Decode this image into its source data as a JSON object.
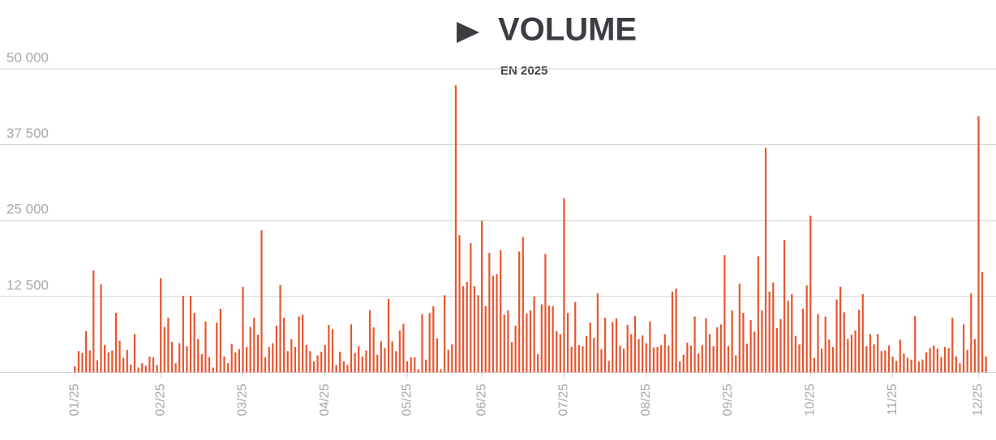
{
  "chart_data": {
    "type": "bar",
    "title": "VOLUME",
    "subtitle": "EN 2025",
    "color": "#e8552f",
    "grid": true,
    "ylim": [
      0,
      50000
    ],
    "yticks": [
      {
        "value": 12500,
        "label": "12 500"
      },
      {
        "value": 25000,
        "label": "25 000"
      },
      {
        "value": 37500,
        "label": "37 500"
      },
      {
        "value": 50000,
        "label": "50 000"
      }
    ],
    "categories": [
      "01/25",
      null,
      null,
      null,
      null,
      null,
      null,
      null,
      null,
      null,
      null,
      null,
      null,
      null,
      null,
      null,
      null,
      null,
      null,
      null,
      null,
      null,
      null,
      "02/25",
      null,
      null,
      null,
      null,
      null,
      null,
      null,
      null,
      null,
      null,
      null,
      null,
      null,
      null,
      null,
      null,
      null,
      null,
      null,
      null,
      null,
      "03/25",
      null,
      null,
      null,
      null,
      null,
      null,
      null,
      null,
      null,
      null,
      null,
      null,
      null,
      null,
      null,
      null,
      null,
      null,
      null,
      null,
      null,
      "04/25",
      null,
      null,
      null,
      null,
      null,
      null,
      null,
      null,
      null,
      null,
      null,
      null,
      null,
      null,
      null,
      null,
      null,
      null,
      null,
      null,
      null,
      "05/25",
      null,
      null,
      null,
      null,
      null,
      null,
      null,
      null,
      null,
      null,
      null,
      null,
      null,
      null,
      null,
      null,
      null,
      null,
      null,
      "06/25",
      null,
      null,
      null,
      null,
      null,
      null,
      null,
      null,
      null,
      null,
      null,
      null,
      null,
      null,
      null,
      null,
      null,
      null,
      null,
      null,
      null,
      "07/25",
      null,
      null,
      null,
      null,
      null,
      null,
      null,
      null,
      null,
      null,
      null,
      null,
      null,
      null,
      null,
      null,
      null,
      null,
      null,
      null,
      null,
      "08/25",
      null,
      null,
      null,
      null,
      null,
      null,
      null,
      null,
      null,
      null,
      null,
      null,
      null,
      null,
      null,
      null,
      null,
      null,
      null,
      null,
      null,
      "09/25",
      null,
      null,
      null,
      null,
      null,
      null,
      null,
      null,
      null,
      null,
      null,
      null,
      null,
      null,
      null,
      null,
      null,
      null,
      null,
      null,
      null,
      "10/25",
      null,
      null,
      null,
      null,
      null,
      null,
      null,
      null,
      null,
      null,
      null,
      null,
      null,
      null,
      null,
      null,
      null,
      null,
      null,
      null,
      null,
      "11/25",
      null,
      null,
      null,
      null,
      null,
      null,
      null,
      null,
      null,
      null,
      null,
      null,
      null,
      null,
      null,
      null,
      null,
      null,
      null,
      null,
      null,
      null,
      "12/25",
      null,
      null
    ],
    "values": [
      1000,
      3500,
      3200,
      6800,
      3600,
      16800,
      2000,
      14500,
      4500,
      3300,
      3600,
      9800,
      5200,
      2400,
      3700,
      1300,
      6300,
      800,
      1500,
      1100,
      2600,
      2500,
      1200,
      15500,
      7500,
      9000,
      5000,
      1500,
      4800,
      12600,
      4300,
      12600,
      9800,
      5500,
      3000,
      8400,
      2500,
      800,
      8200,
      10500,
      2600,
      1500,
      4700,
      3300,
      3800,
      14100,
      4200,
      7500,
      9000,
      6200,
      23400,
      2500,
      4200,
      4800,
      7700,
      14400,
      9000,
      3500,
      5500,
      4200,
      9200,
      9500,
      4500,
      3500,
      1800,
      2800,
      3400,
      4500,
      7800,
      7100,
      1200,
      3400,
      1800,
      1200,
      7900,
      3200,
      4300,
      2600,
      3600,
      10200,
      7400,
      2900,
      5100,
      4000,
      12100,
      5100,
      3500,
      6900,
      8000,
      1800,
      2500,
      2500,
      500,
      9600,
      2100,
      9800,
      10900,
      5600,
      500,
      12700,
      3700,
      4600,
      47300,
      22600,
      14200,
      14900,
      21300,
      14200,
      12700,
      25000,
      10900,
      19700,
      15900,
      16200,
      20100,
      9500,
      10200,
      5000,
      7700,
      19900,
      22300,
      9700,
      10200,
      12500,
      3000,
      11200,
      19500,
      11000,
      10900,
      6800,
      6300,
      28700,
      9800,
      4200,
      11600,
      4500,
      4300,
      6000,
      8200,
      5700,
      13000,
      3800,
      9000,
      1900,
      8300,
      8900,
      4400,
      3900,
      7800,
      6300,
      9300,
      5500,
      6100,
      4800,
      8400,
      4100,
      4200,
      4500,
      6300,
      4400,
      13300,
      13800,
      1800,
      2900,
      4900,
      4400,
      9200,
      3100,
      4500,
      8900,
      6300,
      4300,
      7400,
      7900,
      19300,
      4300,
      10200,
      2800,
      14600,
      9800,
      4700,
      8600,
      6700,
      19100,
      10200,
      37000,
      13300,
      14800,
      7300,
      8800,
      21800,
      11800,
      12900,
      6000,
      4600,
      10500,
      14300,
      25800,
      2400,
      9600,
      3900,
      9200,
      5400,
      4200,
      12000,
      14100,
      9900,
      5500,
      6200,
      6900,
      10300,
      12900,
      4300,
      6300,
      4600,
      6300,
      3500,
      3600,
      4400,
      2600,
      1900,
      5400,
      3100,
      2400,
      2100,
      9300,
      1800,
      2100,
      3300,
      4000,
      4400,
      3900,
      2500,
      4200,
      4000,
      9000,
      2600,
      1500,
      7900,
      3700,
      13000,
      5500,
      42200,
      16500,
      2600
    ]
  }
}
